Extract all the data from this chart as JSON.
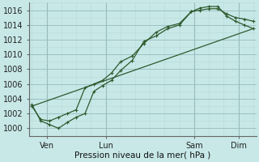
{
  "xlabel": "Pression niveau de la mer( hPa )",
  "bg_color": "#c8e8e8",
  "grid_major_color": "#99bbbb",
  "grid_minor_color": "#b8d8d8",
  "line_color": "#2d5a2d",
  "ylim": [
    999.0,
    1017.0
  ],
  "yticks": [
    1000,
    1002,
    1004,
    1006,
    1008,
    1010,
    1012,
    1014,
    1016
  ],
  "xlim": [
    -0.1,
    7.6
  ],
  "x_tick_positions": [
    0.5,
    2.5,
    5.5,
    7.0
  ],
  "x_tick_labels": [
    "Ven",
    "Lun",
    "Sam",
    "Dim"
  ],
  "line1_x": [
    0.0,
    0.3,
    0.6,
    0.9,
    1.2,
    1.5,
    1.8,
    2.1,
    2.4,
    2.7,
    3.0,
    3.4,
    3.8,
    4.2,
    4.6,
    5.0,
    5.4,
    5.7,
    6.0,
    6.3,
    6.6,
    6.9,
    7.2,
    7.5
  ],
  "line1_y": [
    1003.0,
    1001.2,
    1001.0,
    1001.5,
    1002.0,
    1002.5,
    1005.5,
    1006.0,
    1006.5,
    1007.5,
    1009.0,
    1009.8,
    1011.5,
    1013.0,
    1013.8,
    1014.2,
    1015.8,
    1016.0,
    1016.2,
    1016.2,
    1015.5,
    1015.0,
    1014.8,
    1014.5
  ],
  "line2_x": [
    0.0,
    0.3,
    0.6,
    0.9,
    1.2,
    1.5,
    1.8,
    2.1,
    2.4,
    2.7,
    3.0,
    3.4,
    3.8,
    4.2,
    4.6,
    5.0,
    5.4,
    5.7,
    6.0,
    6.3,
    6.6,
    6.9,
    7.2,
    7.5
  ],
  "line2_y": [
    1003.2,
    1001.0,
    1000.5,
    1000.0,
    1000.8,
    1001.5,
    1002.0,
    1005.0,
    1005.8,
    1006.5,
    1007.8,
    1009.2,
    1011.8,
    1012.5,
    1013.5,
    1014.0,
    1015.8,
    1016.3,
    1016.5,
    1016.5,
    1015.2,
    1014.5,
    1014.0,
    1013.5
  ],
  "line3_x": [
    0.0,
    7.5
  ],
  "line3_y": [
    1003.0,
    1013.5
  ]
}
